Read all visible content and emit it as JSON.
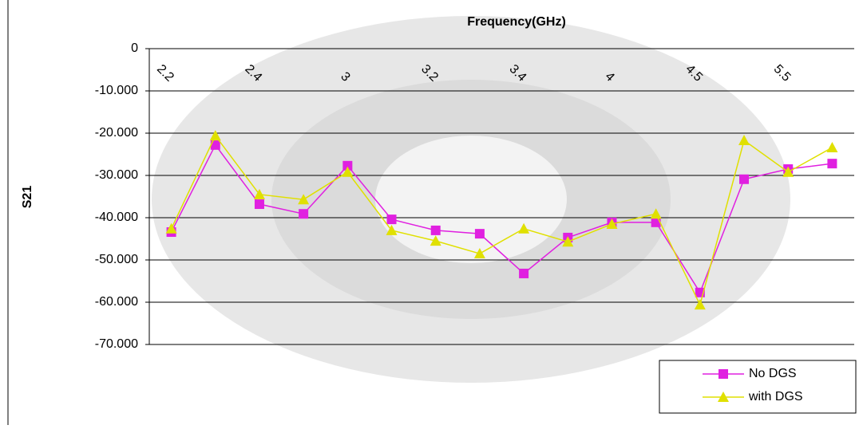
{
  "chart_data": {
    "type": "line",
    "title": "Frequency(GHz)",
    "y_label": "S21",
    "categories": [
      "2.2",
      null,
      "2.4",
      null,
      "3",
      null,
      "3.2",
      null,
      "3.4",
      null,
      "4",
      null,
      "4.5",
      null,
      "5.5",
      null
    ],
    "series": [
      {
        "name": "No DGS",
        "color": "#e020e0",
        "marker": "square",
        "values": [
          -43.4,
          -22.8,
          -36.8,
          -39.1,
          -27.7,
          -40.4,
          -43.0,
          -43.8,
          -53.2,
          -44.7,
          -41.1,
          -41.1,
          -57.7,
          -30.9,
          -28.5,
          -27.2
        ]
      },
      {
        "name": "with DGS",
        "color": "#e0e000",
        "marker": "triangle",
        "values": [
          -42.6,
          -20.6,
          -34.5,
          -35.7,
          -29.2,
          -43.0,
          -45.5,
          -48.5,
          -42.6,
          -45.7,
          -41.5,
          -39.1,
          -60.6,
          -21.7,
          -29.2,
          -23.4
        ]
      }
    ],
    "ylim": [
      -70,
      0
    ],
    "yticks": [
      0,
      {
        "value": -10,
        "label": "-10.000"
      },
      {
        "value": -20,
        "label": "-20.000"
      },
      {
        "value": -30,
        "label": "-30.000"
      },
      {
        "value": -40,
        "label": "-40.000"
      },
      {
        "value": -50,
        "label": "-50.000"
      },
      {
        "value": -60,
        "label": "-60.000"
      },
      {
        "value": -70,
        "label": "-70.000"
      }
    ],
    "grid": true,
    "legend": "bottom-right"
  }
}
